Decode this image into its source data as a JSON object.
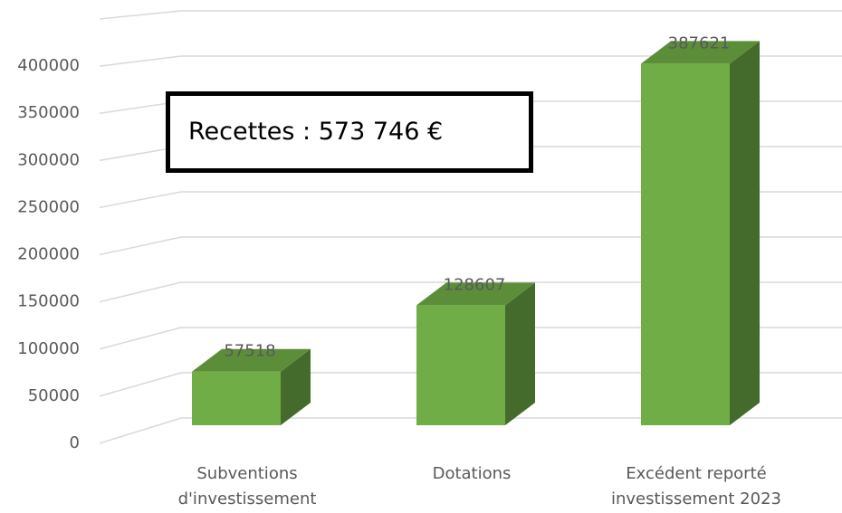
{
  "chart_data": {
    "type": "bar",
    "annotation": "Recettes : 573 746 €",
    "categories": [
      "Subventions d'investissement",
      "Dotations",
      "Excédent reporté investissement 2023"
    ],
    "values": [
      57518,
      128607,
      387621
    ],
    "color": "#70ad47",
    "ylim": [
      0,
      450000
    ],
    "yticks": [
      0,
      50000,
      100000,
      150000,
      200000,
      250000,
      300000,
      350000,
      400000
    ],
    "grid": true
  }
}
